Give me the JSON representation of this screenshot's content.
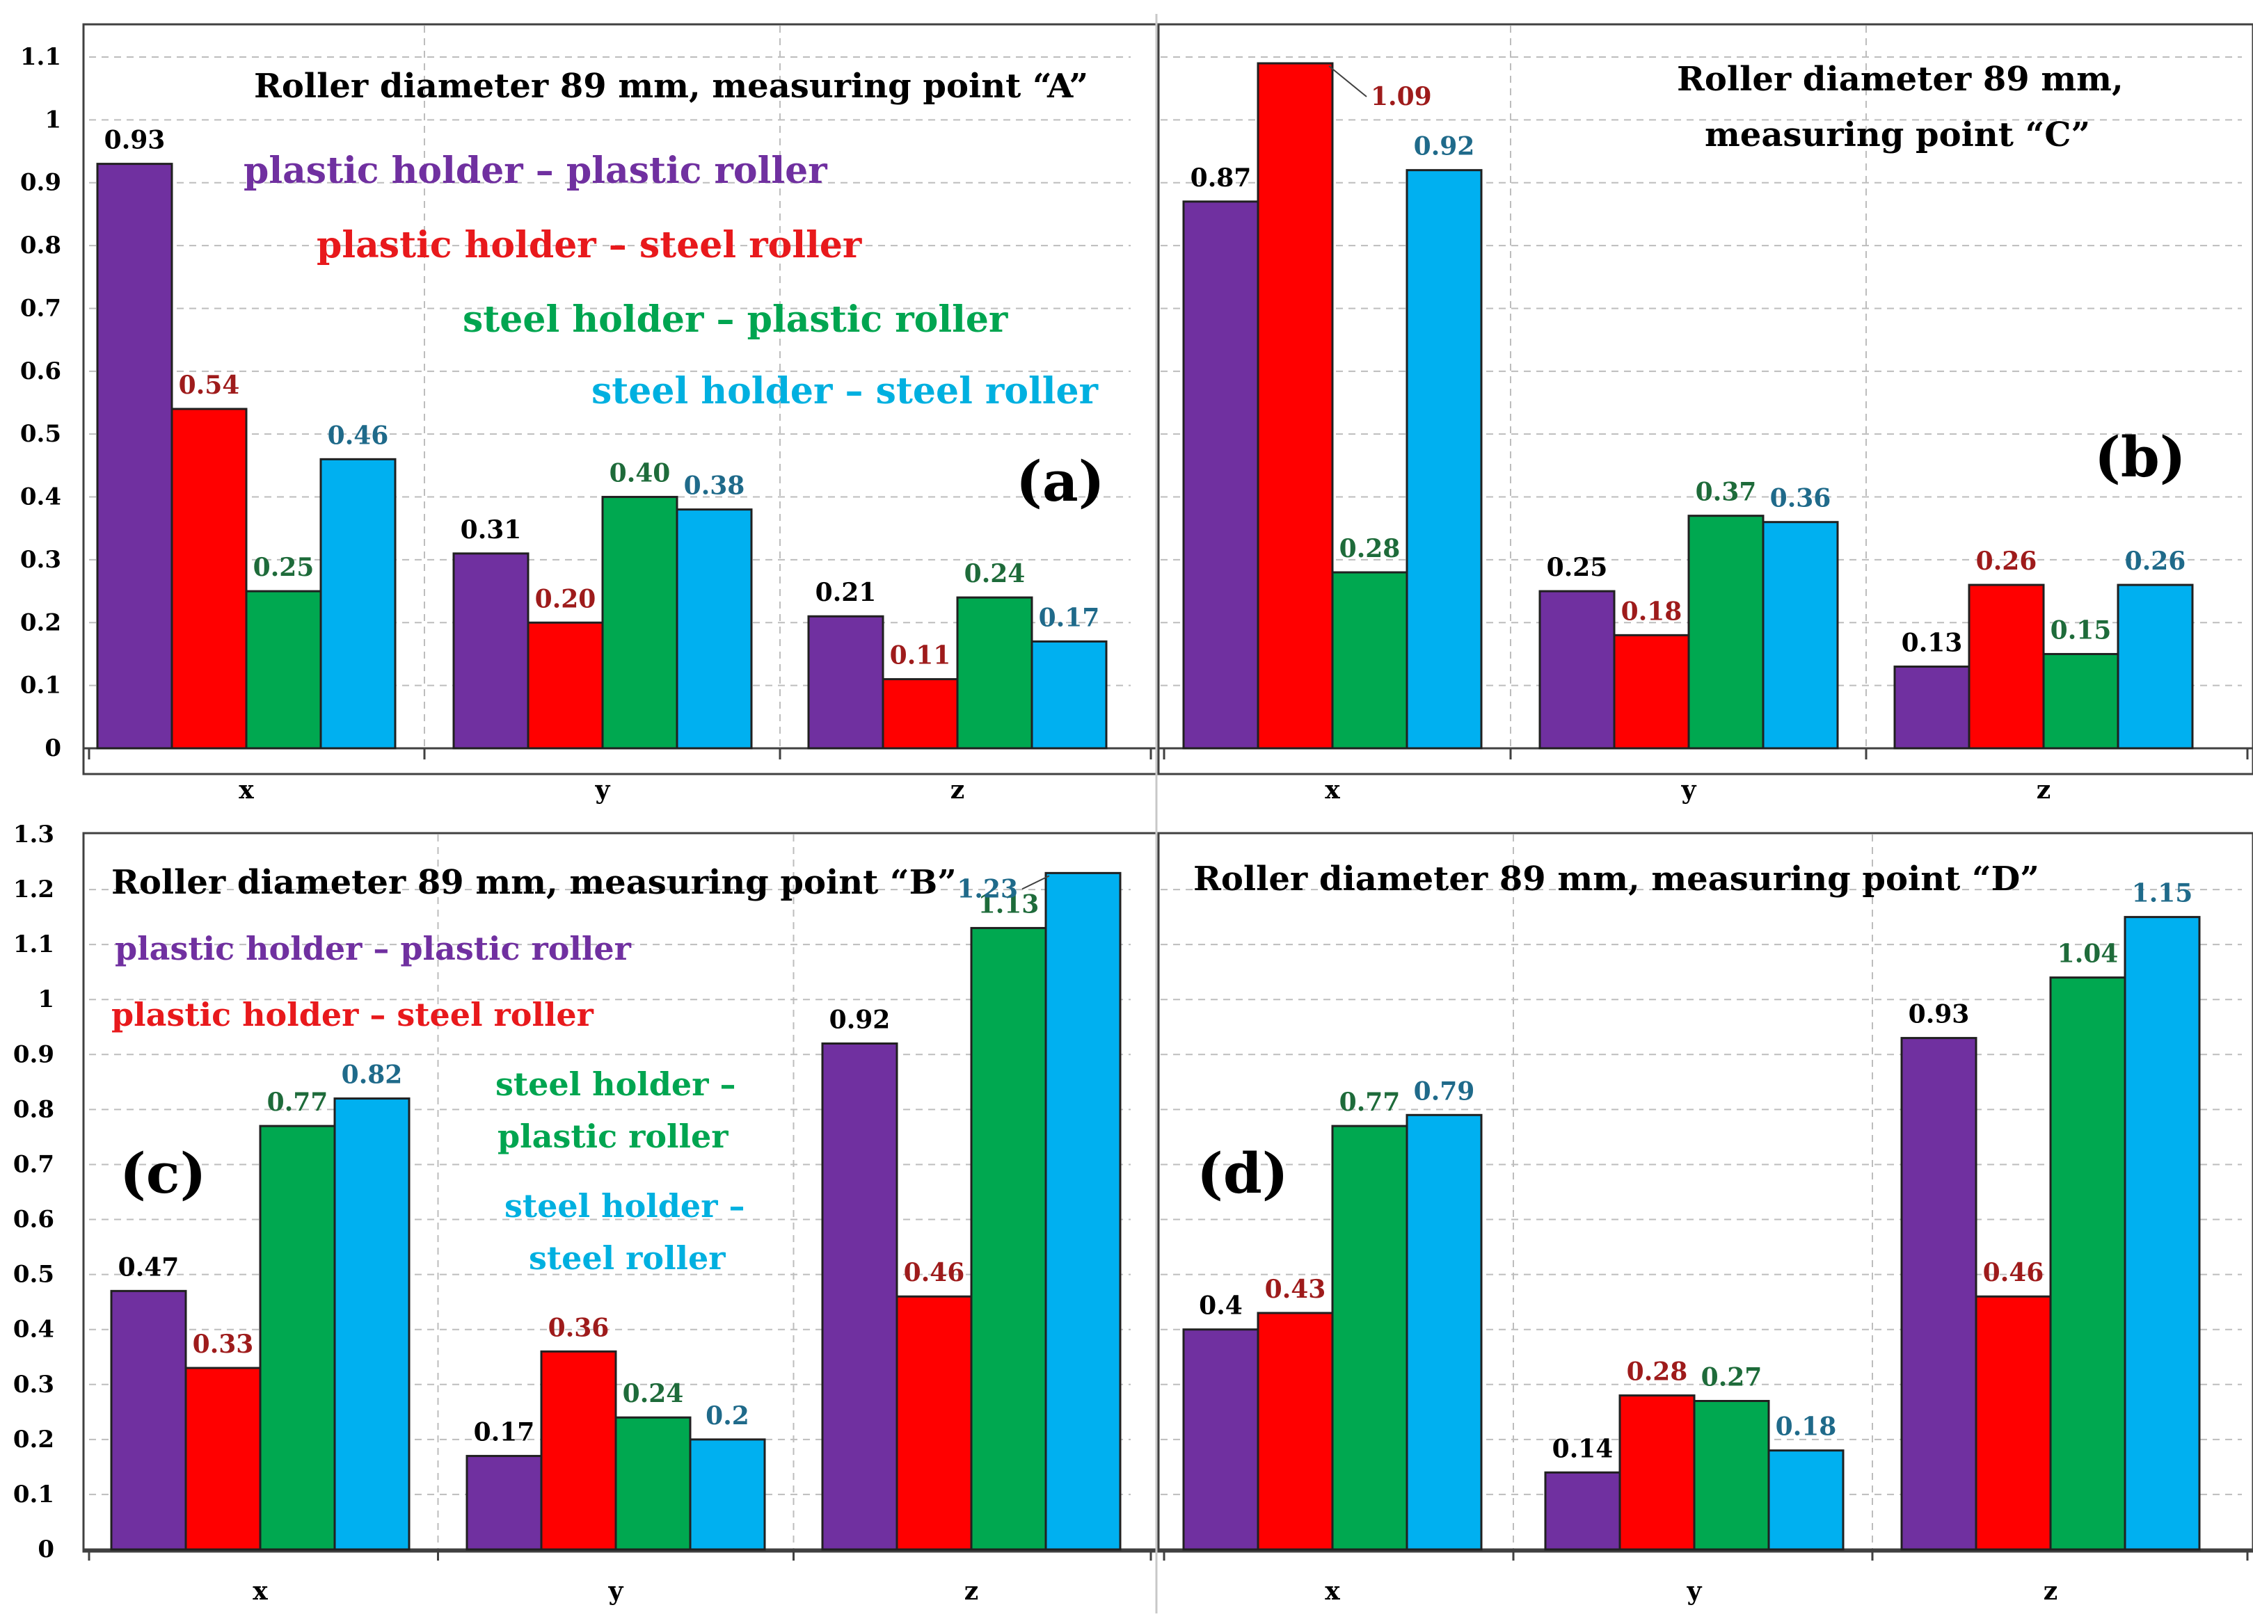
{
  "colors": {
    "series": [
      "#7030A0",
      "#FF0000",
      "#00A850",
      "#00B0F0"
    ],
    "label_colors": [
      "#000000",
      "#9E1B1B",
      "#1E6B3A",
      "#1F6A8A"
    ],
    "legend_colors": [
      "#7030A0",
      "#E8191C",
      "#00A550",
      "#00B0E0"
    ]
  },
  "chart_data": [
    {
      "type": "bar",
      "panel_label": "(a)",
      "title": "Roller diameter 89 mm, measuring point “A”",
      "categories": [
        "x",
        "y",
        "z"
      ],
      "ylim": [
        0,
        1.1
      ],
      "yticks": [
        "0",
        "0.1",
        "0.2",
        "0.3",
        "0.4",
        "0.5",
        "0.6",
        "0.7",
        "0.8",
        "0.9",
        "1",
        "1.1"
      ],
      "grid": true,
      "series": [
        {
          "name": "plastic holder – plastic roller",
          "values": [
            0.93,
            0.31,
            0.21
          ],
          "labels": [
            "0.93",
            "0.31",
            "0.21"
          ]
        },
        {
          "name": "plastic holder – steel roller",
          "values": [
            0.54,
            0.2,
            0.11
          ],
          "labels": [
            "0.54",
            "0.20",
            "0.11"
          ]
        },
        {
          "name": "steel holder – plastic roller",
          "values": [
            0.25,
            0.4,
            0.24
          ],
          "labels": [
            "0.25",
            "0.40",
            "0.24"
          ]
        },
        {
          "name": "steel holder – steel roller",
          "values": [
            0.46,
            0.38,
            0.17
          ],
          "labels": [
            "0.46",
            "0.38",
            "0.17"
          ]
        }
      ]
    },
    {
      "type": "bar",
      "panel_label": "(b)",
      "title": "Roller diameter 89 mm,",
      "title2": "measuring point “C”",
      "categories": [
        "x",
        "y",
        "z"
      ],
      "ylim": [
        0,
        1.1
      ],
      "grid": true,
      "series": [
        {
          "name": "plastic holder – plastic roller",
          "values": [
            0.87,
            0.25,
            0.13
          ],
          "labels": [
            "0.87",
            "0.25",
            "0.13"
          ]
        },
        {
          "name": "plastic holder – steel roller",
          "values": [
            1.09,
            0.18,
            0.26
          ],
          "labels": [
            "1.09",
            "0.18",
            "0.26"
          ]
        },
        {
          "name": "steel holder – plastic roller",
          "values": [
            0.28,
            0.37,
            0.15
          ],
          "labels": [
            "0.28",
            "0.37",
            "0.15"
          ]
        },
        {
          "name": "steel holder – steel roller",
          "values": [
            0.92,
            0.36,
            0.26
          ],
          "labels": [
            "0.92",
            "0.36",
            "0.26"
          ]
        }
      ]
    },
    {
      "type": "bar",
      "panel_label": "(c)",
      "title": "Roller diameter 89 mm, measuring point “B”",
      "categories": [
        "x",
        "y",
        "z"
      ],
      "ylim": [
        0,
        1.3
      ],
      "yticks": [
        "0",
        "0.1",
        "0.2",
        "0.3",
        "0.4",
        "0.5",
        "0.6",
        "0.7",
        "0.8",
        "0.9",
        "1",
        "1.1",
        "1.2",
        "1.3"
      ],
      "grid": true,
      "legend_lines": [
        "plastic holder – plastic roller",
        "plastic holder – steel roller",
        "steel holder –",
        "plastic roller",
        "steel holder –",
        "steel roller"
      ],
      "series": [
        {
          "name": "plastic holder – plastic roller",
          "values": [
            0.47,
            0.17,
            0.92
          ],
          "labels": [
            "0.47",
            "0.17",
            "0.92"
          ]
        },
        {
          "name": "plastic holder – steel roller",
          "values": [
            0.33,
            0.36,
            0.46
          ],
          "labels": [
            "0.33",
            "0.36",
            "0.46"
          ]
        },
        {
          "name": "steel holder – plastic roller",
          "values": [
            0.77,
            0.24,
            1.13
          ],
          "labels": [
            "0.77",
            "0.24",
            "1.13"
          ]
        },
        {
          "name": "steel holder – steel roller",
          "values": [
            0.82,
            0.2,
            1.23
          ],
          "labels": [
            "0.82",
            "0.2",
            "1.23"
          ]
        }
      ]
    },
    {
      "type": "bar",
      "panel_label": "(d)",
      "title": "Roller diameter 89 mm, measuring point “D”",
      "categories": [
        "x",
        "y",
        "z"
      ],
      "ylim": [
        0,
        1.3
      ],
      "grid": true,
      "series": [
        {
          "name": "plastic holder – plastic roller",
          "values": [
            0.4,
            0.14,
            0.93
          ],
          "labels": [
            "0.4",
            "0.14",
            "0.93"
          ]
        },
        {
          "name": "plastic holder – steel roller",
          "values": [
            0.43,
            0.28,
            0.46
          ],
          "labels": [
            "0.43",
            "0.28",
            "0.46"
          ]
        },
        {
          "name": "steel holder – plastic roller",
          "values": [
            0.77,
            0.27,
            1.04
          ],
          "labels": [
            "0.77",
            "0.27",
            "1.04"
          ]
        },
        {
          "name": "steel holder – steel roller",
          "values": [
            0.79,
            0.18,
            1.15
          ],
          "labels": [
            "0.79",
            "0.18",
            "1.15"
          ]
        }
      ]
    }
  ]
}
